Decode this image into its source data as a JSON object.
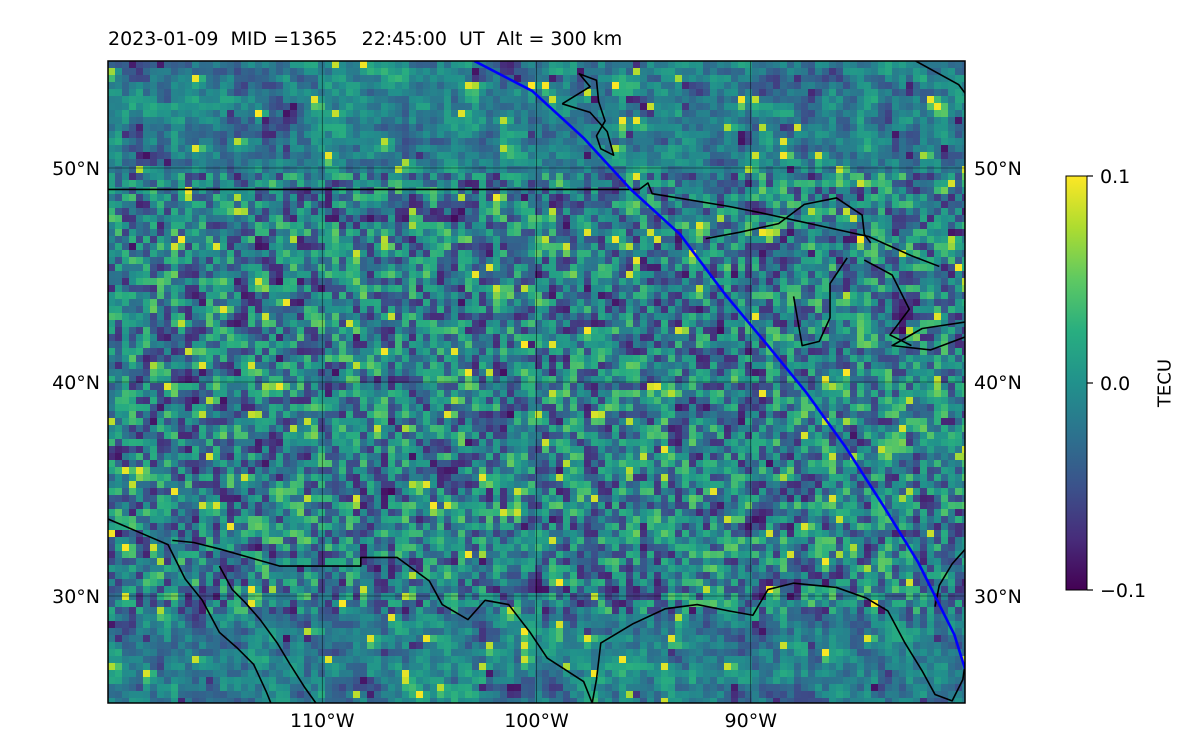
{
  "title": {
    "date": "2023-01-09",
    "mid_label": "MID =1365",
    "time": "22:45:00  UT",
    "altitude": "Alt = 300 km"
  },
  "colorbar": {
    "label": "TECU",
    "colormap": "viridis",
    "ticks": [
      "0.1",
      "0.0",
      "−0.1"
    ],
    "range": [
      -0.1,
      0.1
    ]
  },
  "map": {
    "lon_range": [
      -120,
      -80
    ],
    "lat_range": [
      25,
      55
    ],
    "lon_ticks": [
      {
        "value": -110,
        "label": "110°W"
      },
      {
        "value": -100,
        "label": "100°W"
      },
      {
        "value": -90,
        "label": "90°W"
      }
    ],
    "lat_ticks": [
      {
        "value": 50,
        "label": "50°N"
      },
      {
        "value": 40,
        "label": "40°N"
      },
      {
        "value": 30,
        "label": "30°N"
      }
    ],
    "grid": true,
    "terminator": {
      "color": "#0000ff",
      "points": [
        [
          -102.9,
          55
        ],
        [
          -100.2,
          53.6
        ],
        [
          -97.8,
          51.4
        ],
        [
          -95.6,
          49.0
        ],
        [
          -93.3,
          46.9
        ],
        [
          -91.2,
          44.1
        ],
        [
          -89.2,
          41.7
        ],
        [
          -87.4,
          39.5
        ],
        [
          -85.6,
          37.0
        ],
        [
          -83.8,
          34.2
        ],
        [
          -82.2,
          31.6
        ],
        [
          -80.5,
          28.2
        ],
        [
          -80,
          26.6
        ]
      ]
    },
    "coastlines": [
      [
        [
          -120,
          33.6
        ],
        [
          -118.6,
          33.0
        ],
        [
          -117.2,
          32.4
        ],
        [
          -116.4,
          30.8
        ],
        [
          -115.6,
          29.8
        ],
        [
          -114.8,
          28.3
        ],
        [
          -114.0,
          27.6
        ],
        [
          -113.2,
          26.8
        ],
        [
          -112.6,
          25.5
        ],
        [
          -112.4,
          25
        ]
      ],
      [
        [
          -114.8,
          31.4
        ],
        [
          -114.2,
          30.3
        ],
        [
          -113.6,
          29.7
        ],
        [
          -112.9,
          28.9
        ],
        [
          -112.1,
          27.8
        ],
        [
          -111.5,
          26.8
        ],
        [
          -110.8,
          25.7
        ],
        [
          -110.3,
          25.0
        ]
      ],
      [
        [
          -117.0,
          32.6
        ],
        [
          -116.0,
          32.5
        ],
        [
          -114.8,
          32.2
        ],
        [
          -112.0,
          31.4
        ],
        [
          -108.2,
          31.4
        ],
        [
          -108.2,
          31.8
        ],
        [
          -106.5,
          31.8
        ],
        [
          -105.0,
          30.7
        ],
        [
          -104.4,
          29.6
        ],
        [
          -103.2,
          28.9
        ],
        [
          -102.4,
          29.8
        ],
        [
          -101.3,
          29.6
        ],
        [
          -100.3,
          28.3
        ],
        [
          -99.5,
          27.1
        ],
        [
          -97.8,
          26.0
        ],
        [
          -97.4,
          25.0
        ]
      ],
      [
        [
          -97.4,
          25
        ],
        [
          -97.2,
          26.1
        ],
        [
          -97.0,
          27.8
        ],
        [
          -95.5,
          28.7
        ],
        [
          -94.0,
          29.4
        ],
        [
          -92.5,
          29.6
        ],
        [
          -91.0,
          29.3
        ],
        [
          -89.9,
          29.1
        ],
        [
          -89.2,
          30.3
        ],
        [
          -88.0,
          30.6
        ],
        [
          -86.0,
          30.4
        ],
        [
          -84.6,
          29.9
        ],
        [
          -83.6,
          29.3
        ],
        [
          -82.8,
          27.8
        ],
        [
          -82.0,
          26.5
        ],
        [
          -81.4,
          25.4
        ],
        [
          -80.6,
          25.1
        ],
        [
          -80.1,
          26.1
        ],
        [
          -80.0,
          26.8
        ]
      ],
      [
        [
          -79.8,
          32.4
        ],
        [
          -80.6,
          31.5
        ],
        [
          -81.2,
          30.5
        ],
        [
          -81.4,
          29.5
        ]
      ],
      [
        [
          -95.2,
          49.0
        ],
        [
          -120,
          49.0
        ]
      ],
      [
        [
          -95.2,
          49.0
        ],
        [
          -94.8,
          49.3
        ],
        [
          -94.6,
          48.8
        ],
        [
          -91.0,
          48.2
        ],
        [
          -89.5,
          47.9
        ],
        [
          -84.5,
          46.8
        ],
        [
          -82.5,
          45.9
        ],
        [
          -81.2,
          45.4
        ]
      ],
      [
        [
          -92.1,
          46.7
        ],
        [
          -90.5,
          47.0
        ],
        [
          -88.7,
          47.4
        ],
        [
          -87.5,
          48.3
        ],
        [
          -86.0,
          48.6
        ],
        [
          -84.8,
          47.8
        ],
        [
          -84.7,
          46.9
        ],
        [
          -84.4,
          46.5
        ]
      ],
      [
        [
          -88.0,
          44.0
        ],
        [
          -87.6,
          41.7
        ],
        [
          -86.8,
          41.9
        ],
        [
          -86.3,
          43.0
        ],
        [
          -86.3,
          44.6
        ],
        [
          -85.5,
          45.8
        ]
      ],
      [
        [
          -84.7,
          45.7
        ],
        [
          -83.4,
          45.0
        ],
        [
          -82.6,
          43.4
        ],
        [
          -83.5,
          42.2
        ],
        [
          -82.5,
          41.7
        ]
      ],
      [
        [
          -80.0,
          42.1
        ],
        [
          -81.6,
          41.5
        ],
        [
          -83.4,
          41.7
        ],
        [
          -82.0,
          42.5
        ],
        [
          -80.0,
          42.8
        ]
      ],
      [
        [
          -80.0,
          43.3
        ],
        [
          -80.0,
          43.8
        ]
      ],
      [
        [
          -98.8,
          53.0
        ],
        [
          -97.5,
          53.8
        ],
        [
          -98.0,
          54.4
        ],
        [
          -97.2,
          54.1
        ],
        [
          -97.1,
          53.1
        ],
        [
          -96.8,
          52.2
        ],
        [
          -97.2,
          51.5
        ],
        [
          -97.0,
          50.9
        ],
        [
          -96.4,
          50.6
        ],
        [
          -96.7,
          51.7
        ],
        [
          -97.5,
          52.6
        ],
        [
          -98.8,
          53.0
        ]
      ],
      [
        [
          -80.0,
          53.5
        ],
        [
          -80.3,
          53.9
        ],
        [
          -82.3,
          55.0
        ]
      ]
    ]
  }
}
